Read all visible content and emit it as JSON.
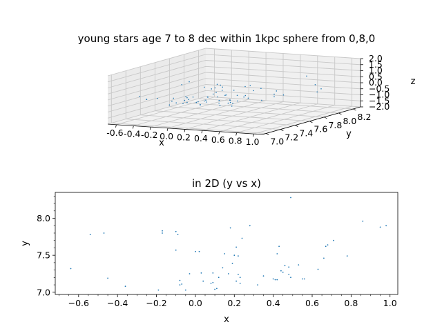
{
  "chart_data": [
    {
      "type": "scatter",
      "projection": "3d",
      "title": "young stars age 7 to 8 dec within 1kpc sphere from 0,8,0",
      "xlabel": "x",
      "ylabel": "y",
      "zlabel": "z",
      "xlim": [
        -0.7,
        1.1
      ],
      "ylim": [
        6.95,
        8.3
      ],
      "zlim": [
        -2.0,
        2.0
      ],
      "xticks": [
        "-0.6",
        "-0.4",
        "-0.2",
        "0.0",
        "0.2",
        "0.4",
        "0.6",
        "0.8",
        "1.0"
      ],
      "yticks": [
        "7.0",
        "7.2",
        "7.4",
        "7.6",
        "7.8",
        "8.0",
        "8.2"
      ],
      "zticks": [
        "−2.0",
        "−1.5",
        "−1.0",
        "−0.5",
        "0.0",
        "0.5",
        "1.0",
        "1.5",
        "2.0"
      ],
      "grid": true,
      "color": "#1f77b4"
    },
    {
      "type": "scatter",
      "title": "in 2D (y vs x)",
      "xlabel": "x",
      "ylabel": "y",
      "xlim": [
        -0.72,
        1.04
      ],
      "ylim": [
        6.97,
        8.35
      ],
      "xticks": [
        "−0.6",
        "−0.4",
        "−0.2",
        "0.0",
        "0.2",
        "0.4",
        "0.6",
        "0.8",
        "1.0"
      ],
      "yticks": [
        "7.0",
        "7.5",
        "8.0"
      ],
      "grid": false,
      "color": "#1f77b4",
      "points": [
        [
          -0.64,
          7.32
        ],
        [
          -0.54,
          7.78
        ],
        [
          -0.47,
          7.8
        ],
        [
          -0.45,
          7.19
        ],
        [
          -0.36,
          7.08
        ],
        [
          -0.19,
          7.03
        ],
        [
          -0.17,
          7.8
        ],
        [
          -0.17,
          7.83
        ],
        [
          -0.1,
          7.57
        ],
        [
          -0.1,
          7.82
        ],
        [
          -0.09,
          7.78
        ],
        [
          -0.08,
          7.16
        ],
        [
          -0.08,
          7.1
        ],
        [
          -0.07,
          7.11
        ],
        [
          -0.05,
          7.03
        ],
        [
          -0.03,
          7.25
        ],
        [
          0.0,
          7.55
        ],
        [
          0.02,
          7.55
        ],
        [
          0.03,
          7.26
        ],
        [
          0.04,
          7.15
        ],
        [
          0.08,
          7.12
        ],
        [
          0.09,
          7.13
        ],
        [
          0.09,
          7.26
        ],
        [
          0.1,
          7.04
        ],
        [
          0.11,
          7.05
        ],
        [
          0.12,
          7.2
        ],
        [
          0.14,
          7.33
        ],
        [
          0.15,
          7.52
        ],
        [
          0.17,
          7.25
        ],
        [
          0.18,
          7.87
        ],
        [
          0.19,
          7.39
        ],
        [
          0.2,
          7.5
        ],
        [
          0.21,
          7.61
        ],
        [
          0.21,
          7.15
        ],
        [
          0.22,
          7.49
        ],
        [
          0.22,
          7.24
        ],
        [
          0.23,
          7.12
        ],
        [
          0.23,
          7.2
        ],
        [
          0.24,
          7.73
        ],
        [
          0.28,
          7.9
        ],
        [
          0.32,
          7.1
        ],
        [
          0.35,
          7.22
        ],
        [
          0.4,
          7.18
        ],
        [
          0.41,
          7.17
        ],
        [
          0.42,
          7.17
        ],
        [
          0.42,
          7.52
        ],
        [
          0.43,
          7.62
        ],
        [
          0.44,
          7.29
        ],
        [
          0.45,
          7.27
        ],
        [
          0.46,
          7.36
        ],
        [
          0.48,
          7.34
        ],
        [
          0.48,
          7.24
        ],
        [
          0.49,
          8.28
        ],
        [
          0.49,
          7.2
        ],
        [
          0.53,
          7.37
        ],
        [
          0.55,
          7.18
        ],
        [
          0.56,
          7.18
        ],
        [
          0.63,
          7.31
        ],
        [
          0.66,
          7.46
        ],
        [
          0.67,
          7.62
        ],
        [
          0.68,
          7.64
        ],
        [
          0.71,
          7.7
        ],
        [
          0.78,
          7.49
        ],
        [
          0.86,
          7.96
        ],
        [
          0.95,
          7.88
        ],
        [
          0.98,
          7.9
        ]
      ]
    }
  ]
}
